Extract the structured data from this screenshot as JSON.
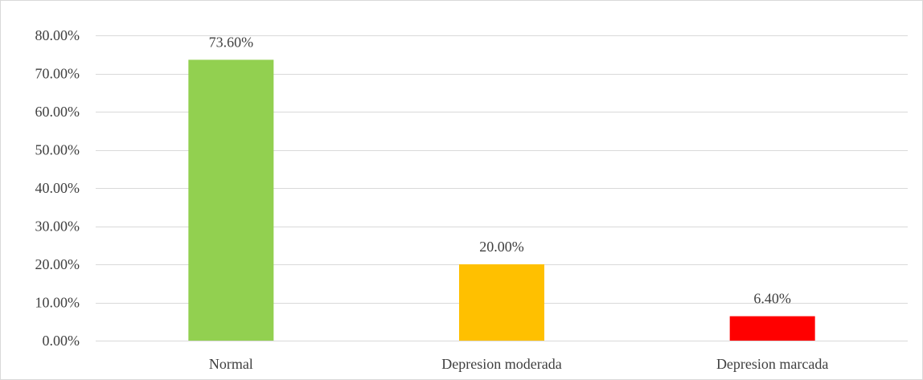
{
  "chart_data": {
    "type": "bar",
    "title": "",
    "xlabel": "",
    "ylabel": "",
    "categories": [
      "Normal",
      "Depresion moderada",
      "Depresion marcada"
    ],
    "values": [
      73.6,
      20.0,
      6.4
    ],
    "data_labels": [
      "73.60%",
      "20.00%",
      "6.40%"
    ],
    "bar_colors": [
      "#92d050",
      "#ffc000",
      "#ff0000"
    ],
    "ylim": [
      0,
      80
    ],
    "y_ticks": [
      0,
      10,
      20,
      30,
      40,
      50,
      60,
      70,
      80
    ],
    "y_tick_labels": [
      "0.00%",
      "10.00%",
      "20.00%",
      "30.00%",
      "40.00%",
      "50.00%",
      "60.00%",
      "70.00%",
      "80.00%"
    ],
    "grid": true,
    "legend": "none"
  }
}
